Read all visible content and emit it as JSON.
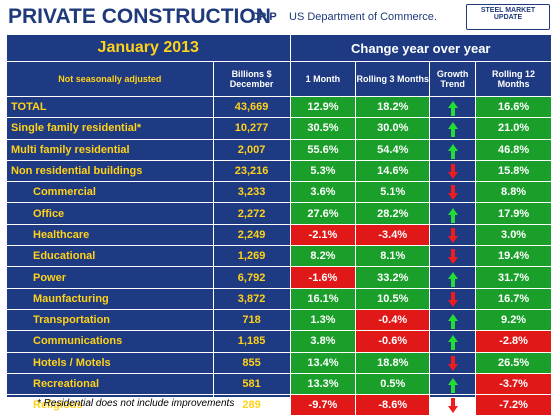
{
  "header": {
    "title": "PRIVATE CONSTRUCTION",
    "cpip": "CPIP",
    "source": "US Department of Commerce.",
    "logo_line1": "STEEL MARKET UPDATE",
    "logo_line2": ""
  },
  "table": {
    "month": "January 2013",
    "change_title": "Change year over year",
    "col_label": "Not seasonally adjusted",
    "col_billions": "Billions $ December",
    "col_1m": "1 Month",
    "col_r3": "Rolling 3 Months",
    "col_trend": "Growth Trend",
    "col_r12": "Rolling 12 Months",
    "colors": {
      "positive": "#1aa02a",
      "negative": "#e01818",
      "up_arrow": "#22dd33",
      "down_arrow": "#ee1c1c"
    },
    "rows": [
      {
        "label": "TOTAL",
        "billions": "43,669",
        "m1": "12.9%",
        "r3": "18.2%",
        "trend": "up",
        "r12": "16.6%",
        "indent": false
      },
      {
        "label": "Single family residential*",
        "billions": "10,277",
        "m1": "30.5%",
        "r3": "30.0%",
        "trend": "up",
        "r12": "21.0%",
        "indent": false
      },
      {
        "label": "Multi family residential",
        "billions": "2,007",
        "m1": "55.6%",
        "r3": "54.4%",
        "trend": "up",
        "r12": "46.8%",
        "indent": false
      },
      {
        "label": "Non residential buildings",
        "billions": "23,216",
        "m1": "5.3%",
        "r3": "14.6%",
        "trend": "down",
        "r12": "15.8%",
        "indent": false
      },
      {
        "label": "Commercial",
        "billions": "3,233",
        "m1": "3.6%",
        "r3": "5.1%",
        "trend": "down",
        "r12": "8.8%",
        "indent": true
      },
      {
        "label": "Office",
        "billions": "2,272",
        "m1": "27.6%",
        "r3": "28.2%",
        "trend": "up",
        "r12": "17.9%",
        "indent": true
      },
      {
        "label": "Healthcare",
        "billions": "2,249",
        "m1": "-2.1%",
        "r3": "-3.4%",
        "trend": "down",
        "r12": "3.0%",
        "indent": true
      },
      {
        "label": "Educational",
        "billions": "1,269",
        "m1": "8.2%",
        "r3": "8.1%",
        "trend": "down",
        "r12": "19.4%",
        "indent": true
      },
      {
        "label": "Power",
        "billions": "6,792",
        "m1": "-1.6%",
        "r3": "33.2%",
        "trend": "up",
        "r12": "31.7%",
        "indent": true
      },
      {
        "label": "Maunfacturing",
        "billions": "3,872",
        "m1": "16.1%",
        "r3": "10.5%",
        "trend": "down",
        "r12": "16.7%",
        "indent": true
      },
      {
        "label": "Transportation",
        "billions": "718",
        "m1": "1.3%",
        "r3": "-0.4%",
        "trend": "up",
        "r12": "9.2%",
        "indent": true
      },
      {
        "label": "Communications",
        "billions": "1,185",
        "m1": "3.8%",
        "r3": "-0.6%",
        "trend": "up",
        "r12": "-2.8%",
        "indent": true
      },
      {
        "label": "Hotels / Motels",
        "billions": "855",
        "m1": "13.4%",
        "r3": "18.8%",
        "trend": "down",
        "r12": "26.5%",
        "indent": true
      },
      {
        "label": "Recreational",
        "billions": "581",
        "m1": "13.3%",
        "r3": "0.5%",
        "trend": "up",
        "r12": "-3.7%",
        "indent": true
      },
      {
        "label": "Religious",
        "billions": "289",
        "m1": "-9.7%",
        "r3": "-8.6%",
        "trend": "down",
        "r12": "-7.2%",
        "indent": true
      }
    ]
  },
  "footnote": "* Residential does not include improvements"
}
